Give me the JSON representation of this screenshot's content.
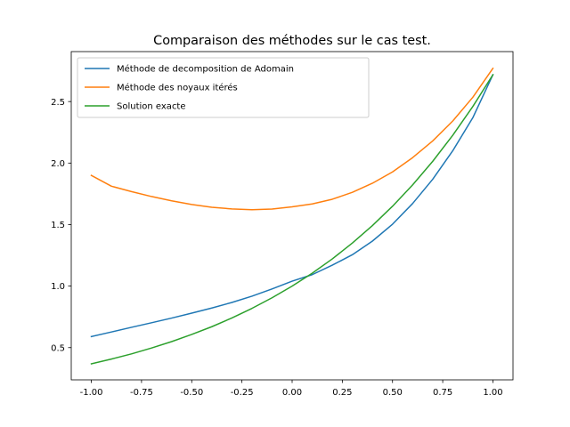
{
  "chart_data": {
    "type": "line",
    "title": "Comparaison des méthodes sur le cas test.",
    "xlabel": "",
    "ylabel": "",
    "xlim": [
      -1.1,
      1.1
    ],
    "ylim": [
      0.238,
      2.906
    ],
    "xticks": [
      "-1.00",
      "-0.75",
      "-0.50",
      "-0.25",
      "0.00",
      "0.25",
      "0.50",
      "0.75",
      "1.00"
    ],
    "xtick_values": [
      -1.0,
      -0.75,
      -0.5,
      -0.25,
      0.0,
      0.25,
      0.5,
      0.75,
      1.0
    ],
    "yticks": [
      "0.5",
      "1.0",
      "1.5",
      "2.0",
      "2.5"
    ],
    "ytick_values": [
      0.5,
      1.0,
      1.5,
      2.0,
      2.5
    ],
    "grid": false,
    "legend": "top-left",
    "x": [
      -1.0,
      -0.9,
      -0.8,
      -0.7,
      -0.6,
      -0.5,
      -0.4,
      -0.3,
      -0.2,
      -0.1,
      0.0,
      0.1,
      0.2,
      0.3,
      0.4,
      0.5,
      0.6,
      0.7,
      0.8,
      0.9,
      1.0
    ],
    "series": [
      {
        "name": "Méthode de decomposition de Adomain",
        "color": "#1f77b4",
        "values": [
          0.59,
          0.627,
          0.665,
          0.702,
          0.74,
          0.78,
          0.822,
          0.867,
          0.918,
          0.977,
          1.04,
          1.093,
          1.17,
          1.255,
          1.366,
          1.503,
          1.671,
          1.868,
          2.1,
          2.369,
          2.718
        ]
      },
      {
        "name": "Méthode des noyaux itérés",
        "color": "#ff7f0e",
        "values": [
          1.9,
          1.812,
          1.768,
          1.728,
          1.693,
          1.663,
          1.641,
          1.627,
          1.621,
          1.626,
          1.644,
          1.668,
          1.706,
          1.762,
          1.836,
          1.928,
          2.044,
          2.18,
          2.342,
          2.535,
          2.77
        ]
      },
      {
        "name": "Solution exacte",
        "color": "#2ca02c",
        "values": [
          0.368,
          0.407,
          0.449,
          0.497,
          0.549,
          0.607,
          0.67,
          0.741,
          0.819,
          0.905,
          1.0,
          1.105,
          1.221,
          1.35,
          1.492,
          1.649,
          1.822,
          2.014,
          2.226,
          2.46,
          2.718
        ]
      }
    ]
  }
}
